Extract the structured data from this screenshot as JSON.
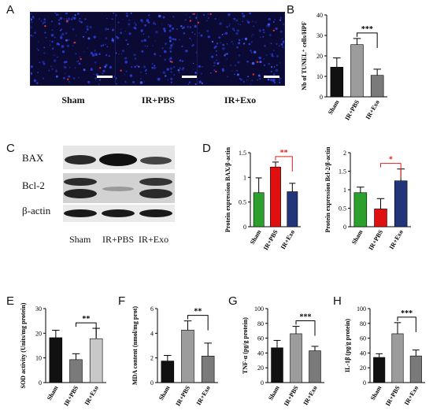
{
  "panels": {
    "A": "A",
    "B": "B",
    "C": "C",
    "D": "D",
    "E": "E",
    "F": "F",
    "G": "G",
    "H": "H"
  },
  "panel_a": {
    "captions": [
      "Sham",
      "IR+PBS",
      "IR+Exo"
    ]
  },
  "panel_c": {
    "bands": [
      "BAX",
      "Bcl-2",
      "β-actin"
    ],
    "groups": [
      "Sham",
      "IR+PBS",
      "IR+Exo"
    ]
  },
  "colors": {
    "black": "#111111",
    "grey_mid": "#9c9c9c",
    "grey_dark": "#7a7a7a",
    "grey_light": "#c8c8c8",
    "green": "#2ca02c",
    "red": "#e01010",
    "navy": "#22357a",
    "sig_black": "#000000",
    "sig_red": "#e0201c"
  },
  "chart_data": [
    {
      "id": "B",
      "type": "bar",
      "categories": [
        "Sham",
        "IR+PBS",
        "IR+Exo"
      ],
      "values": [
        14.5,
        25.5,
        10.5
      ],
      "errors": [
        4.5,
        3.0,
        3.0
      ],
      "ylabel": "Nb of TUNEL⁺ cells/HPF",
      "ylim": [
        0,
        40
      ],
      "yticks": [
        0,
        10,
        20,
        30,
        40
      ],
      "colors": [
        "#111111",
        "#9c9c9c",
        "#7a7a7a"
      ],
      "significance": {
        "from": 1,
        "to": 2,
        "text": "***",
        "color": "#000000"
      }
    },
    {
      "id": "D1",
      "type": "bar",
      "categories": [
        "Sham",
        "IR+PBS",
        "IR+Exo"
      ],
      "values": [
        0.69,
        1.21,
        0.71
      ],
      "errors": [
        0.3,
        0.1,
        0.17
      ],
      "ylabel": "Protein expression BAX/β-actin",
      "ylim": [
        0,
        1.5
      ],
      "yticks": [
        0.0,
        0.5,
        1.0,
        1.5
      ],
      "colors": [
        "#2ca02c",
        "#e01010",
        "#22357a"
      ],
      "significance": {
        "from": 1,
        "to": 2,
        "text": "**",
        "color": "#e0201c"
      }
    },
    {
      "id": "D2",
      "type": "bar",
      "categories": [
        "Sham",
        "IR+PBS",
        "IR+Exo"
      ],
      "values": [
        0.92,
        0.48,
        1.24
      ],
      "errors": [
        0.15,
        0.28,
        0.32
      ],
      "ylabel": "Protein expression Bcl-2/β-actin",
      "ylim": [
        0,
        2.0
      ],
      "yticks": [
        0.0,
        0.5,
        1.0,
        1.5,
        2.0
      ],
      "colors": [
        "#2ca02c",
        "#e01010",
        "#22357a"
      ],
      "significance": {
        "from": 1,
        "to": 2,
        "text": "*",
        "color": "#e0201c"
      }
    },
    {
      "id": "E",
      "type": "bar",
      "categories": [
        "Sham",
        "IR+PBS",
        "IR+Exo"
      ],
      "values": [
        18.2,
        9.3,
        17.8
      ],
      "errors": [
        3.0,
        2.4,
        4.2
      ],
      "ylabel": "SOD activity (Units/mg protein)",
      "ylim": [
        0,
        30
      ],
      "yticks": [
        0,
        10,
        20,
        30
      ],
      "colors": [
        "#111111",
        "#7a7a7a",
        "#c8c8c8"
      ],
      "significance": {
        "from": 1,
        "to": 2,
        "text": "**",
        "color": "#000000"
      }
    },
    {
      "id": "F",
      "type": "bar",
      "categories": [
        "Sham",
        "IR+PBS",
        "IR+Exo"
      ],
      "values": [
        1.75,
        4.25,
        2.15
      ],
      "errors": [
        0.45,
        0.75,
        1.05
      ],
      "ylabel": "MDA content (nmol/mg prot)",
      "ylim": [
        0,
        6
      ],
      "yticks": [
        0,
        2,
        4,
        6
      ],
      "colors": [
        "#111111",
        "#9c9c9c",
        "#7a7a7a"
      ],
      "significance": {
        "from": 1,
        "to": 2,
        "text": "**",
        "color": "#000000"
      }
    },
    {
      "id": "G",
      "type": "bar",
      "categories": [
        "Sham",
        "IR+PBS",
        "IR+Exo"
      ],
      "values": [
        47,
        66,
        43
      ],
      "errors": [
        10,
        10,
        6
      ],
      "ylabel": "TNF-α (pg/g protein)",
      "ylim": [
        0,
        100
      ],
      "yticks": [
        0,
        20,
        40,
        60,
        80,
        100
      ],
      "colors": [
        "#111111",
        "#9c9c9c",
        "#7a7a7a"
      ],
      "significance": {
        "from": 1,
        "to": 2,
        "text": "***",
        "color": "#000000"
      }
    },
    {
      "id": "H",
      "type": "bar",
      "categories": [
        "Sham",
        "IR+PBS",
        "IR+Exo"
      ],
      "values": [
        34,
        66,
        36
      ],
      "errors": [
        5,
        15,
        8
      ],
      "ylabel": "IL-1β (pg/g protein)",
      "ylim": [
        0,
        100
      ],
      "yticks": [
        0,
        20,
        40,
        60,
        80,
        100
      ],
      "colors": [
        "#111111",
        "#9c9c9c",
        "#7a7a7a"
      ],
      "significance": {
        "from": 1,
        "to": 2,
        "text": "***",
        "color": "#000000"
      }
    }
  ]
}
